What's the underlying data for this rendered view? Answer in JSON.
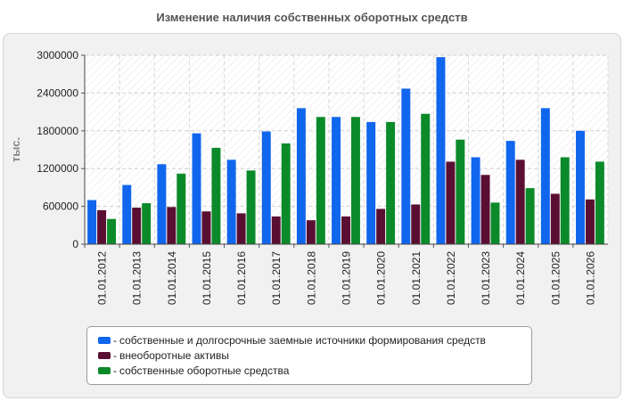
{
  "chart_data": {
    "type": "bar",
    "title": "Изменение наличия собственных оборотных средств",
    "ylabel": "тыс.",
    "xlabel": "",
    "ylim": [
      0,
      3000000
    ],
    "yticks": [
      "0",
      "600000",
      "1200000",
      "1800000",
      "2400000",
      "3000000"
    ],
    "grid": true,
    "legend_position": "bottom",
    "categories": [
      "01.01.2012",
      "01.01.2013",
      "01.01.2014",
      "01.01.2015",
      "01.01.2016",
      "01.01.2017",
      "01.01.2018",
      "01.01.2019",
      "01.01.2020",
      "01.01.2021",
      "01.01.2022",
      "01.01.2023",
      "01.01.2024",
      "01.01.2025",
      "01.01.2026"
    ],
    "series": [
      {
        "name": "собственные и долгосрочные заемные источники формирования средств",
        "color": "#1166ee",
        "values": [
          700000,
          940000,
          1270000,
          1760000,
          1340000,
          1790000,
          2160000,
          2020000,
          1940000,
          2470000,
          2970000,
          1380000,
          1640000,
          2160000,
          1800000
        ]
      },
      {
        "name": "внеоборотные активы",
        "color": "#5a0f32",
        "values": [
          540000,
          580000,
          590000,
          520000,
          490000,
          440000,
          380000,
          440000,
          560000,
          630000,
          1310000,
          1100000,
          1340000,
          800000,
          710000
        ]
      },
      {
        "name": "собственные оборотные средства",
        "color": "#0b8a2a",
        "values": [
          400000,
          650000,
          1120000,
          1530000,
          1170000,
          1600000,
          2020000,
          2020000,
          1940000,
          2070000,
          1660000,
          660000,
          890000,
          1380000,
          1310000
        ]
      }
    ]
  },
  "legend": {
    "items": [
      {
        "label": "собственные и долгосрочные заемные источники формирования средств",
        "color": "#1166ee"
      },
      {
        "label": "внеоборотные активы",
        "color": "#5a0f32"
      },
      {
        "label": "собственные оборотные средства",
        "color": "#0b8a2a"
      }
    ]
  }
}
